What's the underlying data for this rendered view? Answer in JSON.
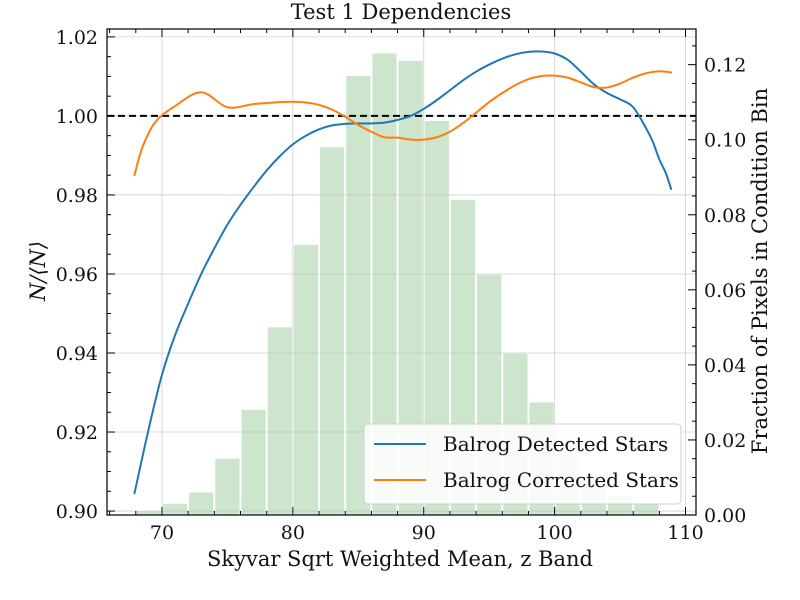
{
  "chart_data": {
    "type": "line",
    "title": "Test 1 Dependencies",
    "xlabel": "Skyvar Sqrt Weighted Mean, z Band",
    "ylabel": "N/⟨N⟩",
    "y2label": "Fraction of Pixels in Condition Bin",
    "xlim": [
      65.8,
      110.8
    ],
    "ylim": [
      0.899,
      1.022
    ],
    "y2lim": [
      0.0,
      0.1295
    ],
    "xticks": [
      70,
      80,
      90,
      100,
      110
    ],
    "xtick_labels": [
      "70",
      "80",
      "90",
      "100",
      "110"
    ],
    "yticks": [
      0.9,
      0.92,
      0.94,
      0.96,
      0.98,
      1.0,
      1.02
    ],
    "ytick_labels": [
      "0.90",
      "0.92",
      "0.94",
      "0.96",
      "0.98",
      "1.00",
      "1.02"
    ],
    "y2ticks": [
      0.0,
      0.02,
      0.04,
      0.06,
      0.08,
      0.1,
      0.12
    ],
    "y2tick_labels": [
      "0.00",
      "0.02",
      "0.04",
      "0.06",
      "0.08",
      "0.10",
      "0.12"
    ],
    "reference_line": 1.0,
    "grid": true,
    "legend_position": "lower-right",
    "histogram": {
      "color": "#cde5cd",
      "bin_width": 2.0,
      "bin_centers": [
        69,
        71,
        73,
        75,
        77,
        79,
        81,
        83,
        85,
        87,
        89,
        91,
        93,
        95,
        97,
        99,
        101,
        103,
        105,
        107,
        109
      ],
      "values": [
        0.001,
        0.003,
        0.006,
        0.015,
        0.028,
        0.05,
        0.072,
        0.098,
        0.117,
        0.123,
        0.121,
        0.105,
        0.084,
        0.064,
        0.043,
        0.03,
        0.016,
        0.009,
        0.005,
        0.003,
        0.0
      ]
    },
    "series": [
      {
        "name": "Balrog Detected Stars",
        "color": "#1f77b4",
        "x": [
          67.9,
          69,
          70,
          71,
          72,
          73,
          74,
          75,
          76,
          77,
          78,
          79,
          80,
          81,
          82,
          83,
          84,
          85,
          86,
          87,
          88,
          89,
          90,
          91,
          92,
          93,
          94,
          95,
          96,
          97,
          98,
          99,
          100,
          101,
          102,
          103,
          104,
          105,
          106,
          107,
          107.5,
          108,
          108.5,
          108.9
        ],
        "y": [
          0.9045,
          0.921,
          0.9345,
          0.9445,
          0.9525,
          0.96,
          0.9665,
          0.9725,
          0.9775,
          0.982,
          0.9862,
          0.9898,
          0.9928,
          0.995,
          0.9966,
          0.9976,
          0.998,
          0.9981,
          0.9981,
          0.9983,
          0.999,
          1.0,
          1.0018,
          1.004,
          1.0065,
          1.009,
          1.0112,
          1.013,
          1.0145,
          1.0156,
          1.0162,
          1.0163,
          1.0158,
          1.0142,
          1.0112,
          1.008,
          1.0058,
          1.0042,
          1.0022,
          0.9968,
          0.9935,
          0.989,
          0.9855,
          0.9815
        ]
      },
      {
        "name": "Balrog Corrected Stars",
        "color": "#ff7f0e",
        "x": [
          67.9,
          68.5,
          69.5,
          71,
          73,
          75,
          77,
          79,
          80,
          81,
          82,
          83,
          84,
          85,
          86,
          87,
          88,
          89,
          90,
          91,
          92,
          93,
          94,
          95,
          96,
          97,
          98,
          99,
          100,
          101,
          102,
          103,
          104,
          105,
          106,
          107,
          108,
          108.9
        ],
        "y": [
          0.985,
          0.992,
          0.9985,
          1.0025,
          1.006,
          1.0022,
          1.003,
          1.0035,
          1.0036,
          1.0034,
          1.0028,
          1.0016,
          0.9998,
          0.9977,
          0.996,
          0.9946,
          0.9945,
          0.994,
          0.994,
          0.9946,
          0.996,
          0.9982,
          1.0008,
          1.0035,
          1.0058,
          1.0078,
          1.0093,
          1.0101,
          1.0102,
          1.0097,
          1.0085,
          1.0073,
          1.0072,
          1.0082,
          1.0097,
          1.0108,
          1.0113,
          1.011
        ]
      }
    ]
  }
}
